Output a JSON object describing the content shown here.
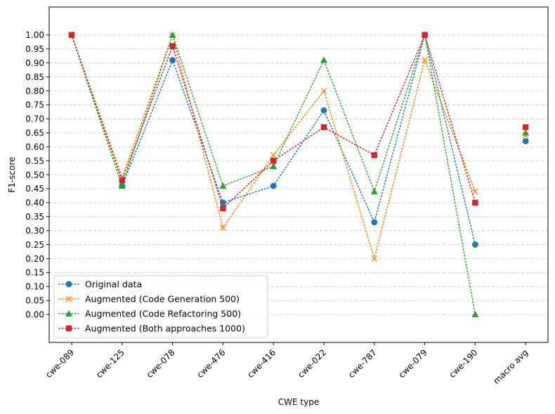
{
  "chart_data": {
    "type": "line",
    "title": "",
    "xlabel": "CWE type",
    "ylabel": "F1-score",
    "categories": [
      "cwe-089",
      "cwe-125",
      "cwe-078",
      "cwe-476",
      "cwe-416",
      "cwe-022",
      "cwe-787",
      "cwe-079",
      "cwe-190",
      "macro avg"
    ],
    "ylim": [
      -0.1,
      1.1
    ],
    "yticks": [
      0.0,
      0.05,
      0.1,
      0.15,
      0.2,
      0.25,
      0.3,
      0.35,
      0.4,
      0.45,
      0.5,
      0.55,
      0.6,
      0.65,
      0.7,
      0.75,
      0.8,
      0.85,
      0.9,
      0.95,
      1.0
    ],
    "ytick_labels": [
      "0.00",
      "0.05",
      "0.10",
      "0.15",
      "0.20",
      "0.25",
      "0.30",
      "0.35",
      "0.40",
      "0.45",
      "0.50",
      "0.55",
      "0.60",
      "0.65",
      "0.70",
      "0.75",
      "0.80",
      "0.85",
      "0.90",
      "0.95",
      "1.00"
    ],
    "grid": "y-dashed",
    "legend_position": "bottom-left",
    "line_style": "dotted",
    "series": [
      {
        "name": "Original data",
        "color": "#1f77b4",
        "marker": "circle",
        "connected_points": 9,
        "values": [
          1.0,
          0.46,
          0.91,
          0.4,
          0.46,
          0.73,
          0.33,
          1.0,
          0.25,
          0.62
        ]
      },
      {
        "name": "Augmented (Code Generation 500)",
        "color": "#ff7f0e",
        "marker": "x",
        "connected_points": 9,
        "values": [
          1.0,
          0.49,
          1.0,
          0.31,
          0.57,
          0.8,
          0.2,
          0.91,
          0.44,
          0.64
        ]
      },
      {
        "name": "Augmented (Code Refactoring 500)",
        "color": "#2ca02c",
        "marker": "triangle",
        "connected_points": 9,
        "values": [
          1.0,
          0.46,
          1.0,
          0.46,
          0.53,
          0.91,
          0.44,
          1.0,
          0.0,
          0.65
        ]
      },
      {
        "name": "Augmented (Both approaches 1000)",
        "color": "#d62728",
        "marker": "square",
        "connected_points": 9,
        "values": [
          1.0,
          0.48,
          0.96,
          0.38,
          0.55,
          0.67,
          0.57,
          1.0,
          0.4,
          0.67
        ]
      }
    ]
  }
}
